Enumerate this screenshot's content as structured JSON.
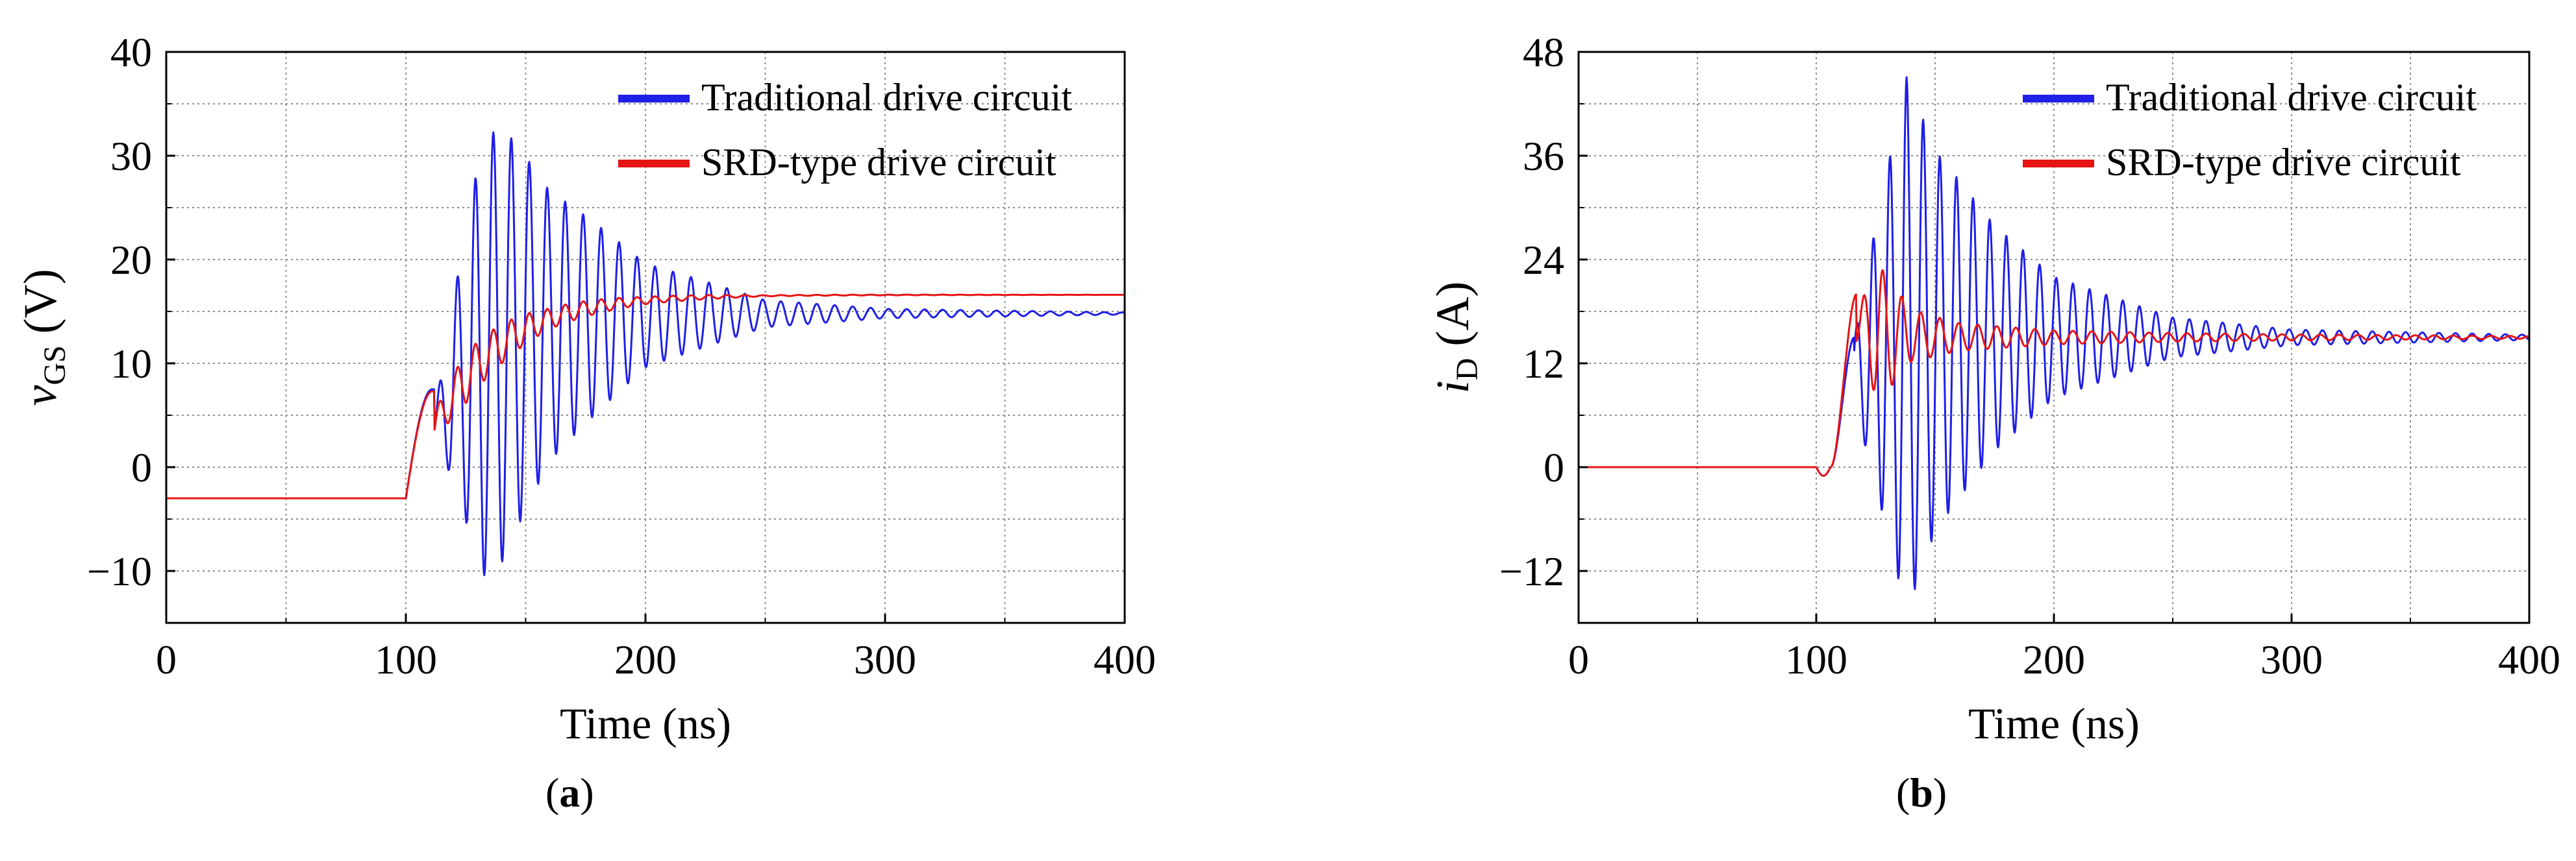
{
  "colors": {
    "traditional": "#1f1fe6",
    "srd": "#e61414",
    "grid": "#8c8c8c",
    "axis": "#000000"
  },
  "panels": [
    {
      "open": "(",
      "letter": "a",
      "close": ")"
    },
    {
      "open": "(",
      "letter": "b",
      "close": ")"
    }
  ],
  "chart_data": [
    {
      "type": "line",
      "xlabel": "Time (ns)",
      "ylabel_main": "v",
      "ylabel_sub": "GS",
      "ylabel_unit": " (V)",
      "xlim": [
        0,
        400
      ],
      "ylim": [
        -15,
        40
      ],
      "xticks": [
        0,
        100,
        200,
        300,
        400
      ],
      "yticks": [
        -10,
        0,
        10,
        20,
        30,
        40
      ],
      "yticks_minor": [
        -15,
        -5,
        5,
        15,
        25,
        35
      ],
      "xticks_minor": [
        50,
        150,
        250,
        350
      ],
      "grid": true,
      "legend": "top-right",
      "series": [
        {
          "name": "Traditional drive circuit",
          "color_key": "traditional",
          "model": {
            "t0": 100,
            "y_init": -3,
            "rise_end": 111,
            "y_peak1": 7.5,
            "final": 14.8,
            "tau_settle": 22,
            "ramp_start": 112,
            "amp": [
              [
                112,
                1
              ],
              [
                125,
                14
              ],
              [
                132,
                21
              ],
              [
                140,
                21
              ],
              [
                160,
                13
              ],
              [
                200,
                5
              ],
              [
                250,
                1.3
              ],
              [
                300,
                0.45
              ],
              [
                400,
                0.1
              ]
            ],
            "period": 7.5,
            "phase_start": 114
          },
          "sample_step": 0.25
        },
        {
          "name": "SRD-type drive circuit",
          "color_key": "srd",
          "model": {
            "t0": 100,
            "y_init": -3,
            "rise_end": 111,
            "y_peak1": 7.3,
            "final": 16.6,
            "tau_settle": 28,
            "ramp_start": 112,
            "amp": [
              [
                112,
                1.5
              ],
              [
                125,
                2.4
              ],
              [
                140,
                1.9
              ],
              [
                160,
                1.0
              ],
              [
                200,
                0.35
              ],
              [
                250,
                0.05
              ],
              [
                400,
                0
              ]
            ],
            "period": 7.5,
            "phase_start": 114
          },
          "sample_step": 0.25
        }
      ]
    },
    {
      "type": "line",
      "xlabel": "Time (ns)",
      "ylabel_main": "i",
      "ylabel_sub": "D",
      "ylabel_unit": " (A)",
      "xlim": [
        0,
        400
      ],
      "ylim": [
        -18,
        48
      ],
      "xticks": [
        0,
        100,
        200,
        300,
        400
      ],
      "yticks": [
        -12,
        0,
        12,
        24,
        36,
        48
      ],
      "yticks_minor": [
        -6,
        6,
        18,
        30,
        42
      ],
      "xticks_minor": [
        50,
        150,
        250,
        350
      ],
      "grid": true,
      "legend": "top-right",
      "series": [
        {
          "name": "Traditional drive circuit",
          "color_key": "traditional",
          "model": {
            "t0": 100,
            "y_init": 0,
            "dip": -1,
            "rise_start": 106,
            "rise_end": 116,
            "y_peak1": 15,
            "final": 15,
            "tau_settle": 15,
            "ramp_start": 116,
            "amp": [
              [
                116,
                4
              ],
              [
                125,
                15
              ],
              [
                138,
                31
              ],
              [
                150,
                22
              ],
              [
                175,
                13
              ],
              [
                200,
                7
              ],
              [
                250,
                2.3
              ],
              [
                300,
                0.9
              ],
              [
                400,
                0.3
              ]
            ],
            "period": 7.0,
            "phase_start": 117
          },
          "sample_step": 0.25
        },
        {
          "name": "SRD-type drive circuit",
          "color_key": "srd",
          "model": {
            "t0": 100,
            "y_init": 0,
            "dip": -1,
            "rise_start": 106,
            "rise_end": 117,
            "y_peak1": 20,
            "final": 15,
            "tau_settle": 15,
            "ramp_start": 117,
            "amp": [
              [
                117,
                2
              ],
              [
                126,
                8
              ],
              [
                140,
                3
              ],
              [
                160,
                1.6
              ],
              [
                200,
                0.8
              ],
              [
                250,
                0.5
              ],
              [
                300,
                0.35
              ],
              [
                400,
                0.15
              ]
            ],
            "period": 8.0,
            "phase_start": 120
          },
          "sample_step": 0.25
        }
      ]
    }
  ]
}
